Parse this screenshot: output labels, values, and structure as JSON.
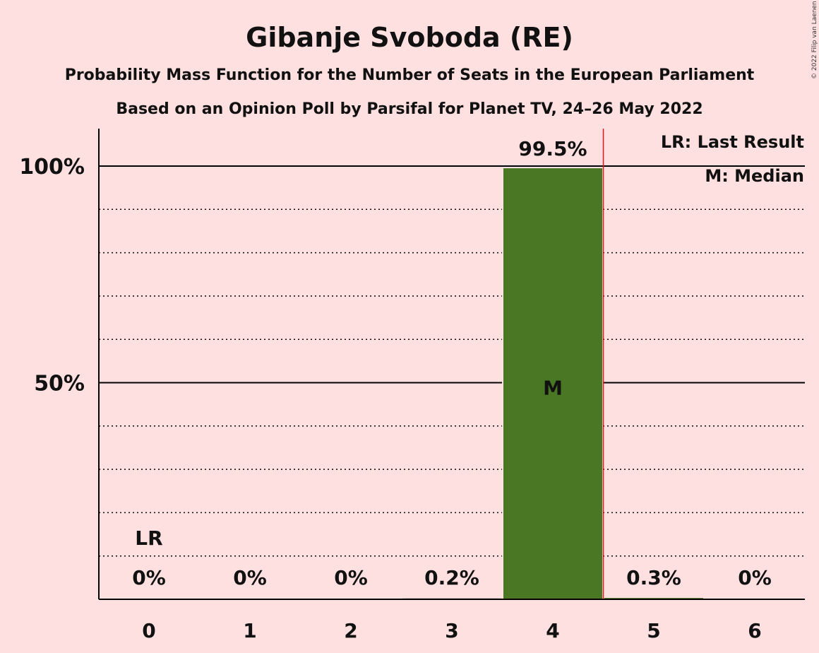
{
  "chart_data": {
    "type": "bar",
    "title": "Gibanje Svoboda (RE)",
    "subtitle_1": "Probability Mass Function for the Number of Seats in the European Parliament",
    "subtitle_2": "Based on an Opinion Poll by Parsifal for Planet TV, 24–26 May 2022",
    "categories": [
      "0",
      "1",
      "2",
      "3",
      "4",
      "5",
      "6"
    ],
    "values": [
      0,
      0,
      0,
      0.2,
      99.5,
      0.3,
      0
    ],
    "value_labels": [
      "0%",
      "0%",
      "0%",
      "0.2%",
      "99.5%",
      "0.3%",
      "0%"
    ],
    "y_ticks": [
      {
        "value": 50,
        "label": "50%"
      },
      {
        "value": 100,
        "label": "100%"
      }
    ],
    "ylim": [
      0,
      110
    ],
    "minor_grid_step": 10,
    "bar_color": "#4A7723",
    "last_result": {
      "category": "0",
      "label": "LR"
    },
    "median": {
      "category": "4",
      "label": "M"
    },
    "threshold_line": {
      "x": 4.5,
      "color": "#E8141C"
    },
    "legend": [
      "LR: Last Result",
      "M: Median"
    ],
    "copyright": "© 2022 Filip van Laenen"
  }
}
